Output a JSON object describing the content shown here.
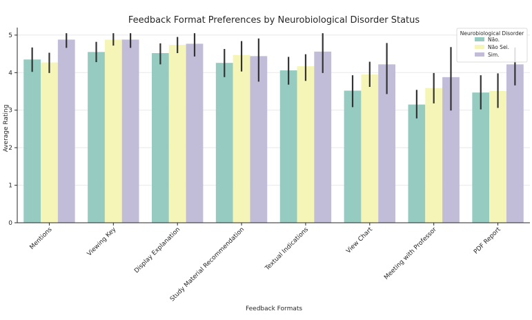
{
  "chart_data": {
    "type": "bar",
    "title": "Feedback Format Preferences by Neurobiological Disorder Status",
    "xlabel": "Feedback Formats",
    "ylabel": "Average Rating",
    "ylim": [
      0,
      5.2
    ],
    "yticks": [
      0,
      1,
      2,
      3,
      4,
      5
    ],
    "grid": true,
    "categories": [
      "Mentions",
      "Viewing Key",
      "Display Explanation",
      "Study Material Recommendation",
      "Textual Indications",
      "View Chart",
      "Meeting with Professor",
      "PDF Report"
    ],
    "legend": {
      "title": "Neurobiological Disorder",
      "placement": "top-right"
    },
    "series": [
      {
        "name": "Não.",
        "color": "#96cbc1",
        "values": [
          4.35,
          4.55,
          4.52,
          4.26,
          4.06,
          3.52,
          3.15,
          3.47
        ],
        "err_low": [
          4.02,
          4.28,
          4.22,
          3.88,
          3.68,
          3.08,
          2.78,
          3.02
        ],
        "err_high": [
          4.67,
          4.82,
          4.78,
          4.63,
          4.42,
          3.93,
          3.54,
          3.93
        ]
      },
      {
        "name": "Não Sei.",
        "color": "#f5f5b7",
        "values": [
          4.27,
          4.88,
          4.74,
          4.47,
          4.17,
          3.95,
          3.59,
          3.51
        ],
        "err_low": [
          3.99,
          4.72,
          4.52,
          4.03,
          3.78,
          3.62,
          3.18,
          3.06
        ],
        "err_high": [
          4.53,
          5.05,
          4.95,
          4.84,
          4.49,
          4.29,
          3.99,
          3.98
        ]
      },
      {
        "name": "Sim.",
        "color": "#c1bcd8",
        "values": [
          4.88,
          4.88,
          4.77,
          4.44,
          4.56,
          4.22,
          3.88,
          4.22
        ],
        "err_low": [
          4.66,
          4.66,
          4.43,
          3.76,
          3.99,
          3.43,
          2.99,
          3.66
        ],
        "err_high": [
          5.05,
          5.05,
          5.05,
          4.91,
          5.05,
          4.79,
          4.68,
          4.67
        ]
      }
    ]
  }
}
